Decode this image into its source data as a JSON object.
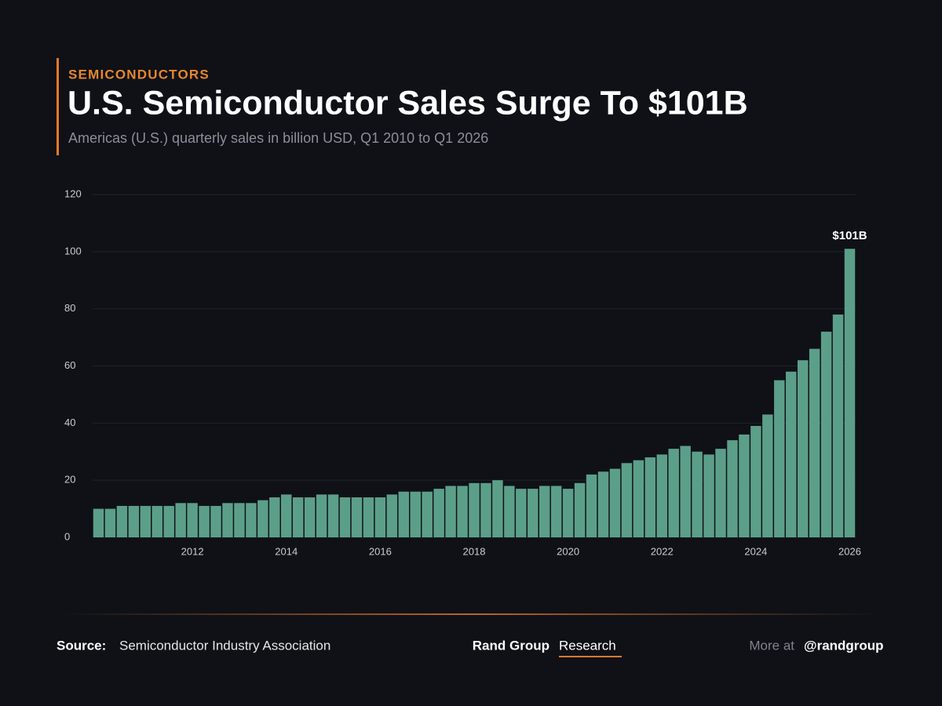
{
  "kicker": "SEMICONDUCTORS",
  "chart_data": {
    "type": "bar",
    "title": "U.S. Semiconductor Sales Surge To $101B",
    "subtitle": "Americas (U.S.) quarterly sales in billion USD, Q1 2010 to Q1 2026",
    "categories": [
      null,
      null,
      null,
      null,
      null,
      null,
      null,
      null,
      "2012",
      null,
      null,
      null,
      null,
      null,
      null,
      null,
      "2014",
      null,
      null,
      null,
      null,
      null,
      null,
      null,
      "2016",
      null,
      null,
      null,
      null,
      null,
      null,
      null,
      "2018",
      null,
      null,
      null,
      null,
      null,
      null,
      null,
      "2020",
      null,
      null,
      null,
      null,
      null,
      null,
      null,
      "2022",
      null,
      null,
      null,
      null,
      null,
      null,
      null,
      "2024",
      null,
      null,
      null,
      null,
      null,
      null,
      null,
      "2026"
    ],
    "values": [
      10,
      10,
      11,
      11,
      11,
      11,
      11,
      12,
      12,
      11,
      11,
      12,
      12,
      12,
      13,
      14,
      15,
      14,
      14,
      15,
      15,
      14,
      14,
      14,
      14,
      15,
      16,
      16,
      16,
      17,
      18,
      18,
      19,
      19,
      20,
      18,
      17,
      17,
      18,
      18,
      17,
      19,
      22,
      23,
      24,
      26,
      27,
      28,
      29,
      31,
      32,
      30,
      29,
      31,
      34,
      36,
      39,
      43,
      55,
      58,
      62,
      66,
      72,
      78,
      101
    ],
    "value_labels": [
      null,
      null,
      null,
      null,
      null,
      null,
      null,
      null,
      null,
      null,
      null,
      null,
      null,
      null,
      null,
      null,
      null,
      null,
      null,
      null,
      null,
      null,
      null,
      null,
      null,
      null,
      null,
      null,
      null,
      null,
      null,
      null,
      null,
      null,
      null,
      null,
      null,
      null,
      null,
      null,
      null,
      null,
      null,
      null,
      null,
      null,
      null,
      null,
      null,
      null,
      null,
      null,
      null,
      null,
      null,
      null,
      null,
      null,
      null,
      null,
      null,
      null,
      null,
      null,
      "$101B"
    ],
    "color": "#5c9f89",
    "ylim": [
      0,
      120
    ],
    "yticks": [
      0,
      20,
      40,
      60,
      80,
      100,
      120
    ],
    "grid": true
  },
  "footer": {
    "source_label": "Source:",
    "source": "Semiconductor Industry Association",
    "brand": "Rand Group",
    "brand_suffix": "Research",
    "more_label": "More at",
    "handle": "@randgroup"
  }
}
